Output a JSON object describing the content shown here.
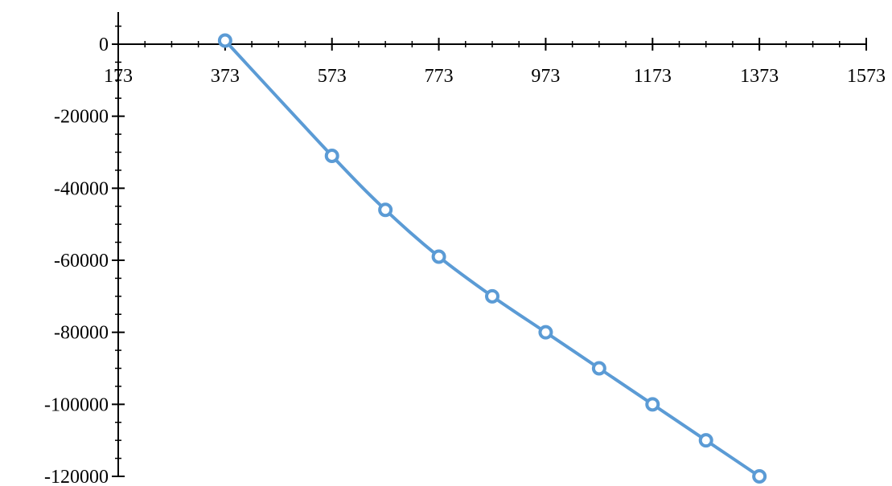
{
  "chart_data": {
    "type": "scatter",
    "title": "",
    "xlabel": "",
    "ylabel": "",
    "xlim": [
      173,
      1573
    ],
    "ylim": [
      -120000,
      0
    ],
    "x_ticks": [
      173,
      373,
      573,
      773,
      973,
      1173,
      1373,
      1573
    ],
    "x_tick_labels": [
      "173",
      "373",
      "573",
      "773",
      "973",
      "1173",
      "1373",
      "1573"
    ],
    "y_ticks": [
      0,
      -20000,
      -40000,
      -60000,
      -80000,
      -100000,
      -120000
    ],
    "y_tick_labels": [
      "0",
      "-20000",
      "-40000",
      "-60000",
      "-80000",
      "-100000",
      "-120000"
    ],
    "x_minor_step": 50,
    "y_minor_step": 5000,
    "grid": false,
    "legend": "none",
    "series": [
      {
        "color": "#5B9BD5",
        "marker": "open-circle",
        "line": "smooth",
        "x": [
          373,
          573,
          673,
          773,
          873,
          973,
          1073,
          1173,
          1273,
          1373
        ],
        "y": [
          1000,
          -31000,
          -46000,
          -59000,
          -70000,
          -80000,
          -90000,
          -100000,
          -110000,
          -120000
        ]
      }
    ]
  }
}
